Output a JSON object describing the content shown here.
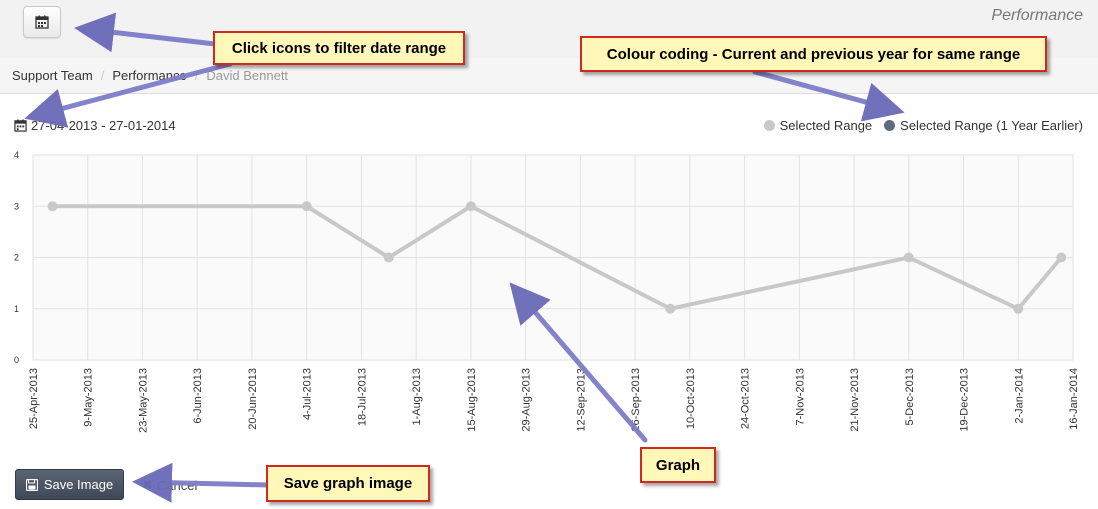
{
  "header": {
    "page_title": "Performance",
    "calendar_icon": "calendar-icon"
  },
  "breadcrumb": {
    "items": [
      "Support Team",
      "Performance"
    ],
    "active": "David Bennett"
  },
  "filter": {
    "date_range": "27-04-2013 - 27-01-2014"
  },
  "legend": {
    "items": [
      {
        "label": "Selected Range",
        "color": "#c8c8c8"
      },
      {
        "label": "Selected Range (1 Year Earlier)",
        "color": "#5f6b80"
      }
    ]
  },
  "chart_data": {
    "type": "line",
    "x_ticks": [
      "25-Apr-2013",
      "9-May-2013",
      "23-May-2013",
      "6-Jun-2013",
      "20-Jun-2013",
      "4-Jul-2013",
      "18-Jul-2013",
      "1-Aug-2013",
      "15-Aug-2013",
      "29-Aug-2013",
      "12-Sep-2013",
      "26-Sep-2013",
      "10-Oct-2013",
      "24-Oct-2013",
      "7-Nov-2013",
      "21-Nov-2013",
      "5-Dec-2013",
      "19-Dec-2013",
      "2-Jan-2014",
      "16-Jan-2014"
    ],
    "y_ticks": [
      "0",
      "1",
      "2",
      "3",
      "4"
    ],
    "ylim": [
      0,
      4
    ],
    "grid": true,
    "series": [
      {
        "name": "Selected Range",
        "color": "#c8c8c8",
        "points": [
          {
            "x": "2013-04-30",
            "y": 3
          },
          {
            "x": "2013-07-04",
            "y": 3
          },
          {
            "x": "2013-07-25",
            "y": 2
          },
          {
            "x": "2013-08-15",
            "y": 3
          },
          {
            "x": "2013-10-05",
            "y": 1
          },
          {
            "x": "2013-12-05",
            "y": 2
          },
          {
            "x": "2014-01-02",
            "y": 1
          },
          {
            "x": "2014-01-13",
            "y": 2
          }
        ]
      }
    ]
  },
  "actions": {
    "save_label": "Save Image",
    "cancel_label": "Cancel"
  },
  "annotations": {
    "filter_date": "Click icons to filter date range",
    "colour_coding": "Colour coding - Current and previous year for same range",
    "graph": "Graph",
    "save_graph": "Save graph image"
  }
}
